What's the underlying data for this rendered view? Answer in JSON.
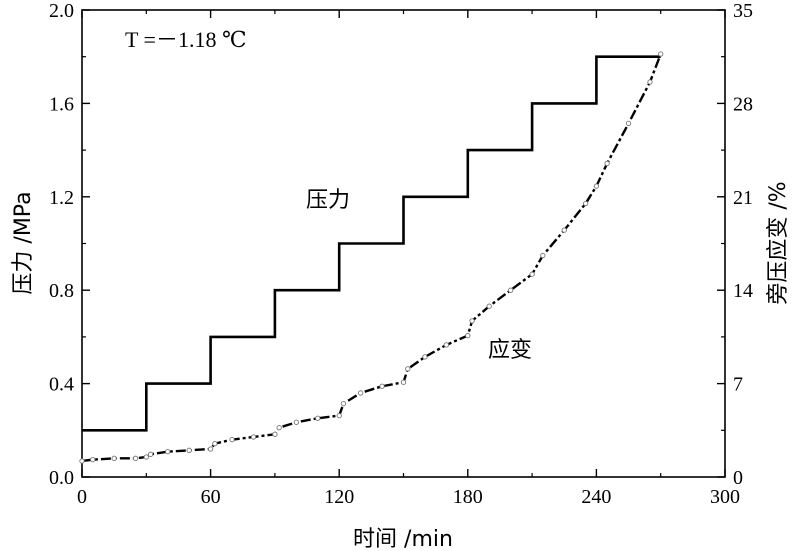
{
  "chart_data": {
    "type": "line",
    "annotation_temperature": "T =－1.18 ℃",
    "xlabel": "时间 /min",
    "ylabel_left": "压力 /MPa",
    "ylabel_right": "旁压应变 /%",
    "xlim": [
      0,
      300
    ],
    "ylim_left": [
      0,
      2.0
    ],
    "ylim_right": [
      0,
      35
    ],
    "x_ticks": [
      "0",
      "60",
      "120",
      "180",
      "240",
      "300"
    ],
    "y_left_ticks": [
      "0.0",
      "0.4",
      "0.8",
      "1.2",
      "1.6",
      "2.0"
    ],
    "y_right_ticks": [
      "0",
      "7",
      "14",
      "21",
      "28",
      "35"
    ],
    "grid": false,
    "series": [
      {
        "name": "压力",
        "axis": "left",
        "style": "step",
        "x": [
          0,
          30,
          30,
          60,
          60,
          90,
          90,
          120,
          120,
          150,
          150,
          180,
          180,
          210,
          210,
          240,
          240,
          270
        ],
        "y": [
          0.2,
          0.2,
          0.4,
          0.4,
          0.6,
          0.6,
          0.8,
          0.8,
          1.0,
          1.0,
          1.2,
          1.2,
          1.4,
          1.4,
          1.6,
          1.6,
          1.8,
          1.8
        ]
      },
      {
        "name": "应变",
        "axis": "right",
        "style": "dashed-with-markers",
        "x": [
          0,
          5,
          15,
          25,
          30,
          32,
          40,
          50,
          60,
          62,
          70,
          80,
          90,
          92,
          100,
          110,
          120,
          122,
          130,
          140,
          150,
          152,
          160,
          170,
          180,
          182,
          190,
          200,
          210,
          215,
          225,
          235,
          240,
          245,
          255,
          265,
          270
        ],
        "y": [
          1.2,
          1.3,
          1.4,
          1.4,
          1.5,
          1.7,
          1.9,
          2.0,
          2.1,
          2.5,
          2.8,
          3.0,
          3.2,
          3.7,
          4.1,
          4.4,
          4.6,
          5.5,
          6.3,
          6.8,
          7.1,
          8.1,
          9.0,
          9.9,
          10.6,
          11.7,
          12.8,
          14.0,
          15.2,
          16.6,
          18.5,
          20.5,
          21.8,
          23.5,
          26.5,
          29.6,
          31.7
        ]
      }
    ],
    "annotations": [
      {
        "text": "压力",
        "target": "压力"
      },
      {
        "text": "应变",
        "target": "应变"
      }
    ]
  }
}
